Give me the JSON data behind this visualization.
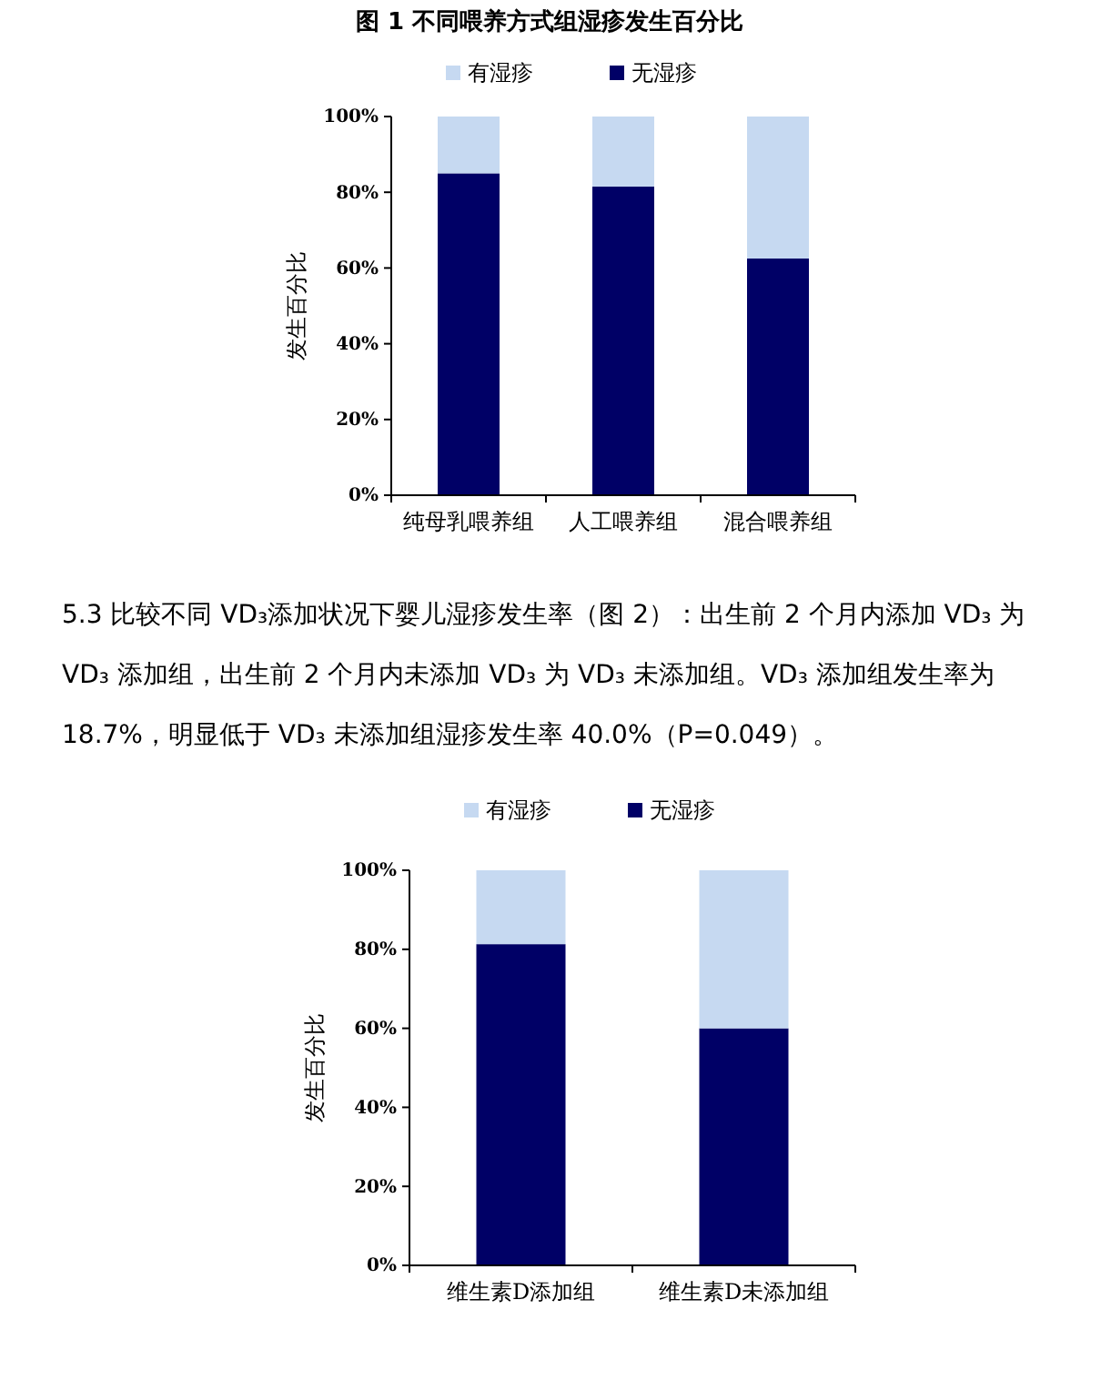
{
  "chart_data": [
    {
      "type": "bar",
      "title": "图 1 不同喂养方式组湿疹发生百分比",
      "ylabel": "发生百分比",
      "stacked": true,
      "legend": "top",
      "categories": [
        "纯母乳喂养组",
        "人工喂养组",
        "混合喂养组"
      ],
      "series": [
        {
          "name": "无湿疹",
          "color": "#000066",
          "values": [
            85,
            81.5,
            62.5
          ]
        },
        {
          "name": "有湿疹",
          "color": "#c6d9f1",
          "values": [
            15,
            18.5,
            37.5
          ]
        }
      ],
      "ylim": [
        0,
        100
      ],
      "yticks": [
        {
          "value": 0,
          "label": "0%"
        },
        {
          "value": 20,
          "label": "20%"
        },
        {
          "value": 40,
          "label": "40%"
        },
        {
          "value": 60,
          "label": "60%"
        },
        {
          "value": 80,
          "label": "80%"
        },
        {
          "value": 100,
          "label": "100%"
        }
      ]
    },
    {
      "type": "bar",
      "ylabel": "发生百分比",
      "stacked": true,
      "legend": "top",
      "annotations": [
        "5.3 比较不同 VD₃添加状况下婴儿湿疹发生率（图 2）：出生前 2 个月内添加 VD₃ 为 VD₃ 添加组，出生前 2 个月内未添加 VD₃ 为 VD₃ 未添加组。VD₃ 添加组发生率为 18.7%，明显低于 VD₃ 未添加组湿疹发生率 40.0%（P=0.049）。"
      ],
      "categories": [
        "维生素D添加组",
        "维生素D未添加组"
      ],
      "series": [
        {
          "name": "无湿疹",
          "color": "#000066",
          "values": [
            81.3,
            60
          ]
        },
        {
          "name": "有湿疹",
          "color": "#c6d9f1",
          "values": [
            18.7,
            40
          ]
        }
      ],
      "ylim": [
        0,
        100
      ],
      "yticks": [
        {
          "value": 0,
          "label": "0%"
        },
        {
          "value": 20,
          "label": "20%"
        },
        {
          "value": 40,
          "label": "40%"
        },
        {
          "value": 60,
          "label": "60%"
        },
        {
          "value": 80,
          "label": "80%"
        },
        {
          "value": 100,
          "label": "100%"
        }
      ]
    }
  ]
}
